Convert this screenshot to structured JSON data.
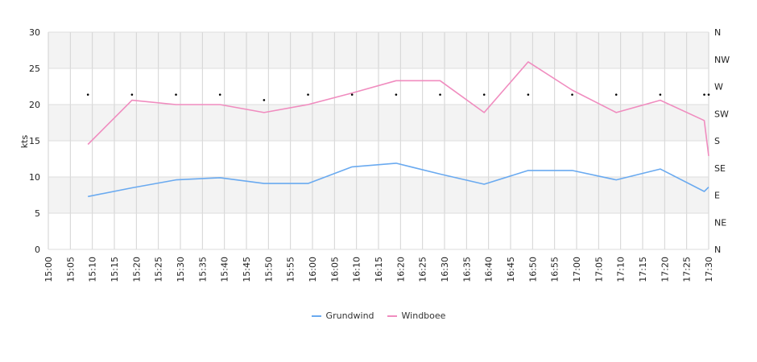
{
  "chart_data": {
    "type": "line",
    "ylabel": "kts",
    "y_left_ticks": [
      "0",
      "5",
      "10",
      "15",
      "20",
      "25",
      "30"
    ],
    "ylim": [
      0,
      30
    ],
    "y_right_ticks": [
      "N",
      "NE",
      "E",
      "SE",
      "S",
      "SW",
      "W",
      "NW",
      "N"
    ],
    "x_ticks": [
      "15:00",
      "15:05",
      "15:10",
      "15:15",
      "15:20",
      "15:25",
      "15:30",
      "15:35",
      "15:40",
      "15:45",
      "15:50",
      "15:55",
      "16:00",
      "16:05",
      "16:10",
      "16:15",
      "16:20",
      "16:25",
      "16:30",
      "16:35",
      "16:40",
      "16:45",
      "16:50",
      "16:55",
      "17:00",
      "17:05",
      "17:10",
      "17:15",
      "17:20",
      "17:25",
      "17:30"
    ],
    "xlim": [
      "15:00",
      "17:30"
    ],
    "grid": true,
    "legend_position": "bottom",
    "series": [
      {
        "name": "Grundwind",
        "color": "#6aaaf0",
        "x": [
          "15:09",
          "15:19",
          "15:29",
          "15:39",
          "15:49",
          "15:59",
          "16:09",
          "16:19",
          "16:29",
          "16:39",
          "16:49",
          "16:59",
          "17:09",
          "17:19",
          "17:29",
          "17:30"
        ],
        "values": [
          7.3,
          8.5,
          9.6,
          9.9,
          9.1,
          9.1,
          11.4,
          11.9,
          10.4,
          9.0,
          10.9,
          10.9,
          9.6,
          11.1,
          8.0,
          8.6
        ]
      },
      {
        "name": "Windboee",
        "color": "#f08cbf",
        "x": [
          "15:09",
          "15:19",
          "15:29",
          "15:39",
          "15:49",
          "15:59",
          "16:09",
          "16:19",
          "16:29",
          "16:39",
          "16:49",
          "16:59",
          "17:09",
          "17:19",
          "17:29",
          "17:30"
        ],
        "values": [
          14.5,
          20.6,
          20.0,
          20.0,
          18.9,
          20.0,
          21.6,
          23.3,
          23.3,
          18.9,
          25.9,
          22.0,
          18.9,
          20.6,
          17.8,
          12.9
        ]
      }
    ],
    "direction_points": {
      "x": [
        "15:09",
        "15:19",
        "15:29",
        "15:39",
        "15:49",
        "15:59",
        "16:09",
        "16:19",
        "16:29",
        "16:39",
        "16:49",
        "16:59",
        "17:09",
        "17:19",
        "17:29",
        "17:30"
      ],
      "compass_index": [
        5.7,
        5.7,
        5.7,
        5.7,
        5.5,
        5.7,
        5.7,
        5.7,
        5.7,
        5.7,
        5.7,
        5.7,
        5.7,
        5.7,
        5.7,
        5.7
      ]
    }
  }
}
